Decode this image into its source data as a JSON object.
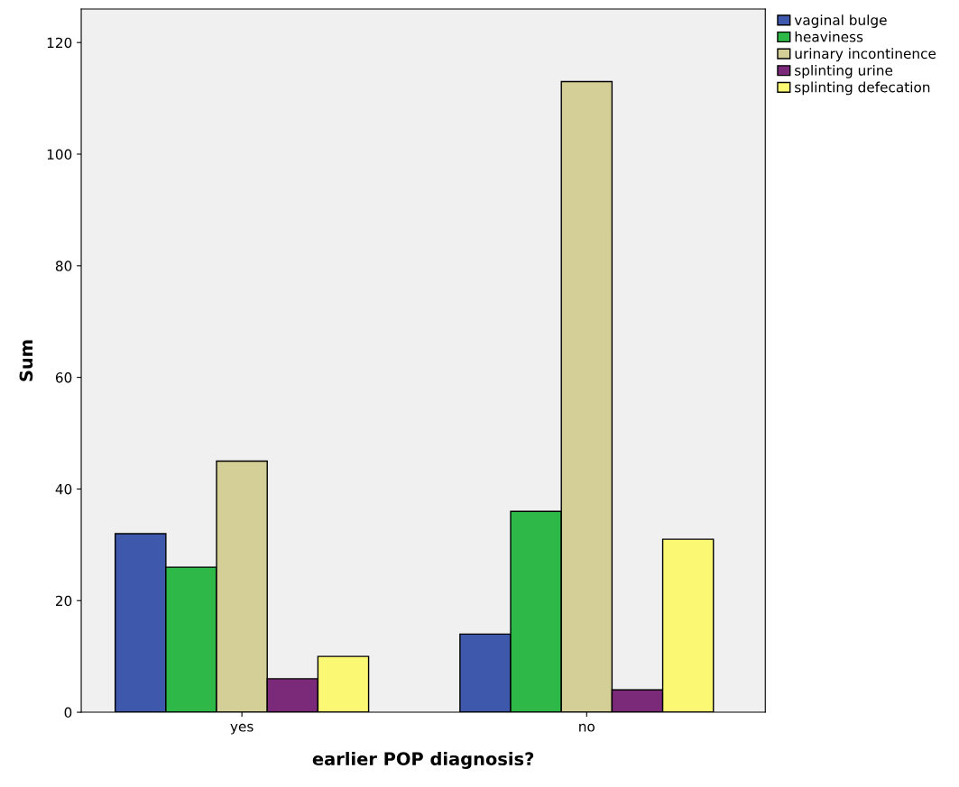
{
  "chart_data": {
    "type": "bar",
    "xlabel": "earlier POP diagnosis?",
    "ylabel": "Sum",
    "categories": [
      "yes",
      "no"
    ],
    "series": [
      {
        "name": "vaginal bulge",
        "color": "#3e58ac",
        "values": [
          32,
          14
        ]
      },
      {
        "name": "heaviness",
        "color": "#2eb848",
        "values": [
          26,
          36
        ]
      },
      {
        "name": "urinary incontinence",
        "color": "#d4cf96",
        "values": [
          45,
          113
        ]
      },
      {
        "name": "splinting urine",
        "color": "#7a2a78",
        "values": [
          6,
          4
        ]
      },
      {
        "name": "splinting defecation",
        "color": "#fbf873",
        "values": [
          10,
          31
        ]
      }
    ],
    "ylim": [
      0,
      126
    ],
    "yticks": [
      0,
      20,
      40,
      60,
      80,
      100,
      120
    ],
    "grid": false,
    "legend": "right"
  }
}
